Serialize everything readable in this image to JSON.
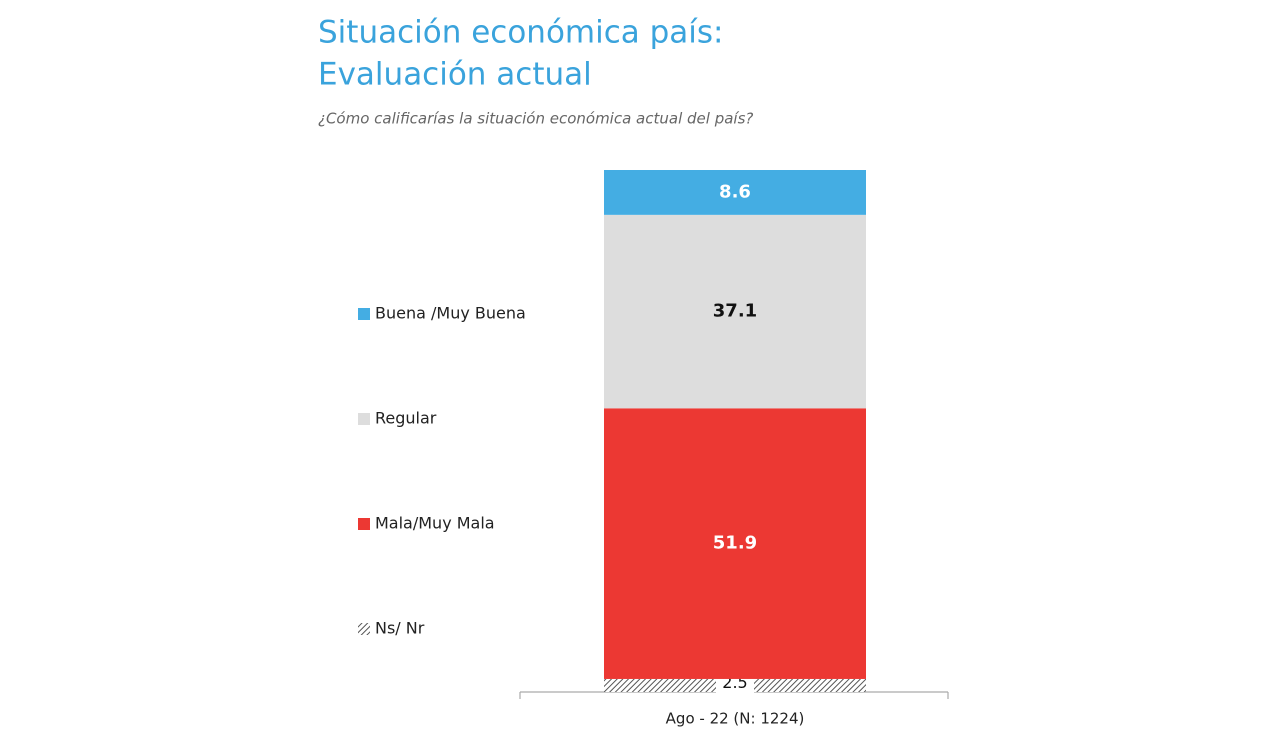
{
  "chart_data": {
    "type": "stacked-bar",
    "title": [
      "Situación económica país:",
      "Evaluación actual"
    ],
    "subtitle": "¿Cómo calificarías la situación económica actual del país?",
    "categories": [
      "Ago - 22 (N: 1224)"
    ],
    "series": [
      {
        "name": "Buena /Muy Buena",
        "color": "#44ade3",
        "values": [
          8.6
        ]
      },
      {
        "name": "Regular",
        "color": "#dddddd",
        "values": [
          37.1
        ]
      },
      {
        "name": "Mala/Muy Mala",
        "color": "#ec3833",
        "values": [
          51.9
        ]
      },
      {
        "name": "Ns/ Nr",
        "color": "#555555",
        "pattern": "hatch",
        "values": [
          2.5
        ]
      }
    ],
    "legend": "left"
  }
}
